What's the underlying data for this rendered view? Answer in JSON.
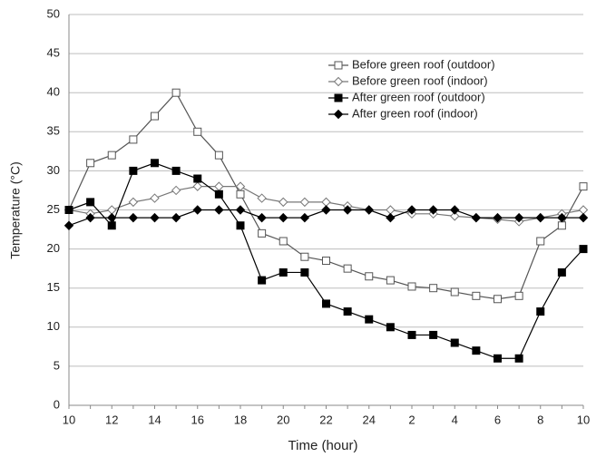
{
  "chart_data": {
    "type": "line",
    "x_label": "Time (hour)",
    "y_label": "Temperature (°C)",
    "categories": [
      "10",
      null,
      "12",
      null,
      "14",
      null,
      "16",
      null,
      "18",
      null,
      "20",
      null,
      "22",
      null,
      "24",
      null,
      "2",
      null,
      "4",
      null,
      "6",
      null,
      "8",
      null,
      "10"
    ],
    "ylim": [
      0,
      50
    ],
    "yticks": [
      0,
      5,
      10,
      15,
      20,
      25,
      30,
      35,
      40,
      45,
      50
    ],
    "grid": true,
    "series": [
      {
        "name": "Before green roof (outdoor)",
        "color": "#555555",
        "marker": "square",
        "filled": false,
        "values": [
          25,
          31,
          32,
          34,
          37,
          40,
          35,
          32,
          27,
          22,
          21,
          19,
          18.5,
          17.5,
          16.5,
          16,
          15.2,
          15,
          14.5,
          14,
          13.6,
          14,
          21,
          23,
          28
        ]
      },
      {
        "name": "Before green roof (indoor)",
        "color": "#777777",
        "marker": "diamond",
        "filled": false,
        "values": [
          25,
          24.5,
          25,
          26,
          26.5,
          27.5,
          28,
          28,
          28,
          26.5,
          26,
          26,
          26,
          25.5,
          25,
          25,
          24.5,
          24.5,
          24.2,
          24,
          23.8,
          23.5,
          24,
          24.5,
          25
        ]
      },
      {
        "name": "After green roof (outdoor)",
        "color": "#000000",
        "marker": "square",
        "filled": true,
        "values": [
          25,
          26,
          23,
          30,
          31,
          30,
          29,
          27,
          23,
          16,
          17,
          17,
          13,
          12,
          11,
          10,
          9,
          9,
          8,
          7,
          6,
          6,
          12,
          17,
          20
        ]
      },
      {
        "name": "After green roof (indoor)",
        "color": "#000000",
        "marker": "diamond",
        "filled": true,
        "values": [
          23,
          24,
          24,
          24,
          24,
          24,
          25,
          25,
          25,
          24,
          24,
          24,
          25,
          25,
          25,
          24,
          25,
          25,
          25,
          24,
          24,
          24,
          24,
          24,
          24
        ]
      }
    ]
  }
}
